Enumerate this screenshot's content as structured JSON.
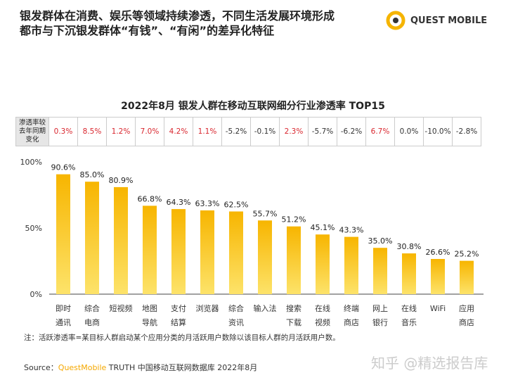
{
  "header": {
    "title_line1": "银发群体在消费、娱乐等领域持续渗透，不同生活发展环境形成",
    "title_line2": "都市与下沉银发群体“有钱”、“有闲”的差异化特征",
    "logo": "QUEST MOBILE"
  },
  "table": {
    "header": "渗透率较去年同期变化",
    "values": [
      "0.3%",
      "8.5%",
      "1.2%",
      "7.0%",
      "4.2%",
      "1.1%",
      "-5.2%",
      "-0.1%",
      "2.3%",
      "-5.7%",
      "-6.2%",
      "6.7%",
      "0.0%",
      "-10.0%",
      "-2.8%"
    ]
  },
  "colors": {
    "bar": "#f7b500",
    "positive": "#d9262e",
    "neutral": "#333333"
  },
  "chart_data": {
    "type": "bar",
    "title": "2022年8月 银发人群在移动互联网细分行业渗透率 TOP15",
    "categories": [
      "即时\n通讯",
      "综合\n电商",
      "短视频",
      "地图\n导航",
      "支付\n结算",
      "浏览器",
      "综合\n资讯",
      "输入法",
      "搜索\n下载",
      "在线\n视频",
      "终端\n商店",
      "网上\n银行",
      "在线\n音乐",
      "WiFi",
      "应用\n商店"
    ],
    "values": [
      90.6,
      85.0,
      80.9,
      66.8,
      64.3,
      63.3,
      62.5,
      55.7,
      51.2,
      45.1,
      43.3,
      35.0,
      30.8,
      26.6,
      25.2
    ],
    "data_labels": [
      "90.6%",
      "85.0%",
      "80.9%",
      "66.8%",
      "64.3%",
      "63.3%",
      "62.5%",
      "55.7%",
      "51.2%",
      "45.1%",
      "43.3%",
      "35.0%",
      "30.8%",
      "26.6%",
      "25.2%"
    ],
    "yticks": [
      "0%",
      "50%",
      "100%"
    ],
    "ylim": [
      0,
      100
    ]
  },
  "footer": {
    "note": "注：活跃渗透率=某目标人群启动某个应用分类的月活跃用户数除以该目标人群的月活跃用户数。",
    "source_prefix": "Source：",
    "source_brand": "QuestMobile",
    "source_rest": " TRUTH 中国移动互联网数据库 2022年8月",
    "watermark": "知乎 @精选报告库"
  }
}
